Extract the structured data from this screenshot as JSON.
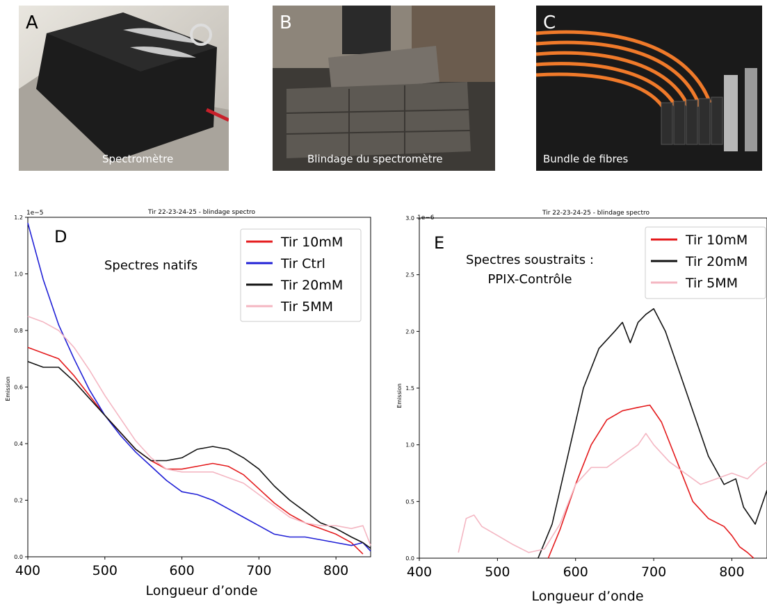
{
  "photos": [
    {
      "letter": "A",
      "caption": "Spectromètre"
    },
    {
      "letter": "B",
      "caption": "Blindage du spectromètre"
    },
    {
      "letter": "C",
      "caption": "Bundle de fibres"
    }
  ],
  "colors": {
    "red": "#e41a1c",
    "blue": "#1f1fd6",
    "black": "#111111",
    "pink": "#f4b6c2"
  },
  "chart_data": [
    {
      "type": "line",
      "panel_letter": "D",
      "title": "Tir 22-23-24-25 - blindage spectro",
      "annotation": "Spectres natifs",
      "xlabel": "Longueur d’onde",
      "ylabel": "Emission",
      "y_multiplier": "1e−5",
      "xlim": [
        400,
        845
      ],
      "ylim": [
        0,
        1.2
      ],
      "x_ticks": [
        "400",
        "500",
        "600",
        "700",
        "800"
      ],
      "y_ticks": [
        "0.0",
        "0.2",
        "0.4",
        "0.6",
        "0.8",
        "1.0",
        "1.2"
      ],
      "legend_position": "top-right",
      "series": [
        {
          "name": "Tir 10mM",
          "color": "#e41a1c",
          "points": [
            [
              400,
              0.74
            ],
            [
              420,
              0.72
            ],
            [
              440,
              0.7
            ],
            [
              460,
              0.64
            ],
            [
              480,
              0.57
            ],
            [
              500,
              0.5
            ],
            [
              520,
              0.44
            ],
            [
              540,
              0.38
            ],
            [
              560,
              0.34
            ],
            [
              580,
              0.31
            ],
            [
              600,
              0.31
            ],
            [
              620,
              0.32
            ],
            [
              640,
              0.33
            ],
            [
              660,
              0.32
            ],
            [
              680,
              0.29
            ],
            [
              700,
              0.24
            ],
            [
              720,
              0.19
            ],
            [
              740,
              0.15
            ],
            [
              760,
              0.12
            ],
            [
              780,
              0.1
            ],
            [
              800,
              0.08
            ],
            [
              820,
              0.05
            ],
            [
              835,
              0.01
            ]
          ]
        },
        {
          "name": "Tir Ctrl",
          "color": "#1f1fd6",
          "points": [
            [
              400,
              1.18
            ],
            [
              410,
              1.08
            ],
            [
              420,
              0.98
            ],
            [
              440,
              0.82
            ],
            [
              460,
              0.7
            ],
            [
              480,
              0.59
            ],
            [
              500,
              0.5
            ],
            [
              520,
              0.43
            ],
            [
              540,
              0.37
            ],
            [
              560,
              0.32
            ],
            [
              580,
              0.27
            ],
            [
              600,
              0.23
            ],
            [
              620,
              0.22
            ],
            [
              640,
              0.2
            ],
            [
              660,
              0.17
            ],
            [
              680,
              0.14
            ],
            [
              700,
              0.11
            ],
            [
              720,
              0.08
            ],
            [
              740,
              0.07
            ],
            [
              760,
              0.07
            ],
            [
              780,
              0.06
            ],
            [
              800,
              0.05
            ],
            [
              820,
              0.04
            ],
            [
              835,
              0.05
            ],
            [
              845,
              0.02
            ]
          ]
        },
        {
          "name": "Tir 20mM",
          "color": "#111111",
          "points": [
            [
              400,
              0.69
            ],
            [
              420,
              0.67
            ],
            [
              440,
              0.67
            ],
            [
              460,
              0.62
            ],
            [
              480,
              0.56
            ],
            [
              500,
              0.5
            ],
            [
              520,
              0.44
            ],
            [
              540,
              0.38
            ],
            [
              560,
              0.34
            ],
            [
              580,
              0.34
            ],
            [
              600,
              0.35
            ],
            [
              620,
              0.38
            ],
            [
              640,
              0.39
            ],
            [
              660,
              0.38
            ],
            [
              680,
              0.35
            ],
            [
              700,
              0.31
            ],
            [
              720,
              0.25
            ],
            [
              740,
              0.2
            ],
            [
              760,
              0.16
            ],
            [
              780,
              0.12
            ],
            [
              800,
              0.1
            ],
            [
              820,
              0.07
            ],
            [
              835,
              0.05
            ],
            [
              845,
              0.03
            ]
          ]
        },
        {
          "name": "Tir 5MM",
          "color": "#f4b6c2",
          "points": [
            [
              400,
              0.85
            ],
            [
              420,
              0.83
            ],
            [
              440,
              0.8
            ],
            [
              460,
              0.74
            ],
            [
              480,
              0.66
            ],
            [
              500,
              0.57
            ],
            [
              520,
              0.49
            ],
            [
              540,
              0.41
            ],
            [
              560,
              0.35
            ],
            [
              580,
              0.31
            ],
            [
              600,
              0.3
            ],
            [
              620,
              0.3
            ],
            [
              640,
              0.3
            ],
            [
              660,
              0.28
            ],
            [
              680,
              0.26
            ],
            [
              700,
              0.22
            ],
            [
              720,
              0.18
            ],
            [
              740,
              0.14
            ],
            [
              760,
              0.12
            ],
            [
              780,
              0.11
            ],
            [
              800,
              0.11
            ],
            [
              820,
              0.1
            ],
            [
              835,
              0.11
            ],
            [
              845,
              0.04
            ]
          ]
        }
      ]
    },
    {
      "type": "line",
      "panel_letter": "E",
      "title": "Tir 22-23-24-25 - blindage spectro",
      "annotation": "Spectres soustraits :",
      "annotation_line2": "PPIX-Contrôle",
      "xlabel": "Longueur d’onde",
      "ylabel": "Emission",
      "y_multiplier": "1e−6",
      "xlim": [
        400,
        845
      ],
      "ylim": [
        0,
        3.0
      ],
      "x_ticks": [
        "400",
        "500",
        "600",
        "700",
        "800"
      ],
      "y_ticks": [
        "0.0",
        "0.5",
        "1.0",
        "1.5",
        "2.0",
        "2.5",
        "3.0"
      ],
      "legend_position": "top-right",
      "series": [
        {
          "name": "Tir 10mM",
          "color": "#e41a1c",
          "points": [
            [
              565,
              0.0
            ],
            [
              580,
              0.25
            ],
            [
              600,
              0.65
            ],
            [
              620,
              1.0
            ],
            [
              640,
              1.22
            ],
            [
              660,
              1.3
            ],
            [
              680,
              1.33
            ],
            [
              695,
              1.35
            ],
            [
              710,
              1.2
            ],
            [
              730,
              0.85
            ],
            [
              750,
              0.5
            ],
            [
              770,
              0.35
            ],
            [
              790,
              0.28
            ],
            [
              800,
              0.2
            ],
            [
              810,
              0.1
            ],
            [
              820,
              0.05
            ],
            [
              828,
              0.0
            ]
          ]
        },
        {
          "name": "Tir 20mM",
          "color": "#111111",
          "points": [
            [
              552,
              0.0
            ],
            [
              570,
              0.3
            ],
            [
              590,
              0.9
            ],
            [
              610,
              1.5
            ],
            [
              630,
              1.85
            ],
            [
              650,
              2.0
            ],
            [
              660,
              2.08
            ],
            [
              670,
              1.9
            ],
            [
              680,
              2.08
            ],
            [
              690,
              2.15
            ],
            [
              700,
              2.2
            ],
            [
              715,
              2.0
            ],
            [
              730,
              1.7
            ],
            [
              750,
              1.3
            ],
            [
              770,
              0.9
            ],
            [
              790,
              0.65
            ],
            [
              805,
              0.7
            ],
            [
              815,
              0.45
            ],
            [
              830,
              0.3
            ],
            [
              845,
              0.6
            ]
          ]
        },
        {
          "name": "Tir 5MM",
          "color": "#f4b6c2",
          "points": [
            [
              450,
              0.05
            ],
            [
              460,
              0.35
            ],
            [
              470,
              0.38
            ],
            [
              480,
              0.28
            ],
            [
              500,
              0.2
            ],
            [
              520,
              0.12
            ],
            [
              540,
              0.05
            ],
            [
              560,
              0.08
            ],
            [
              580,
              0.3
            ],
            [
              600,
              0.65
            ],
            [
              620,
              0.8
            ],
            [
              640,
              0.8
            ],
            [
              660,
              0.9
            ],
            [
              680,
              1.0
            ],
            [
              690,
              1.1
            ],
            [
              700,
              1.0
            ],
            [
              720,
              0.85
            ],
            [
              740,
              0.75
            ],
            [
              760,
              0.65
            ],
            [
              780,
              0.7
            ],
            [
              800,
              0.75
            ],
            [
              820,
              0.7
            ],
            [
              835,
              0.8
            ],
            [
              845,
              0.85
            ]
          ]
        }
      ]
    }
  ]
}
